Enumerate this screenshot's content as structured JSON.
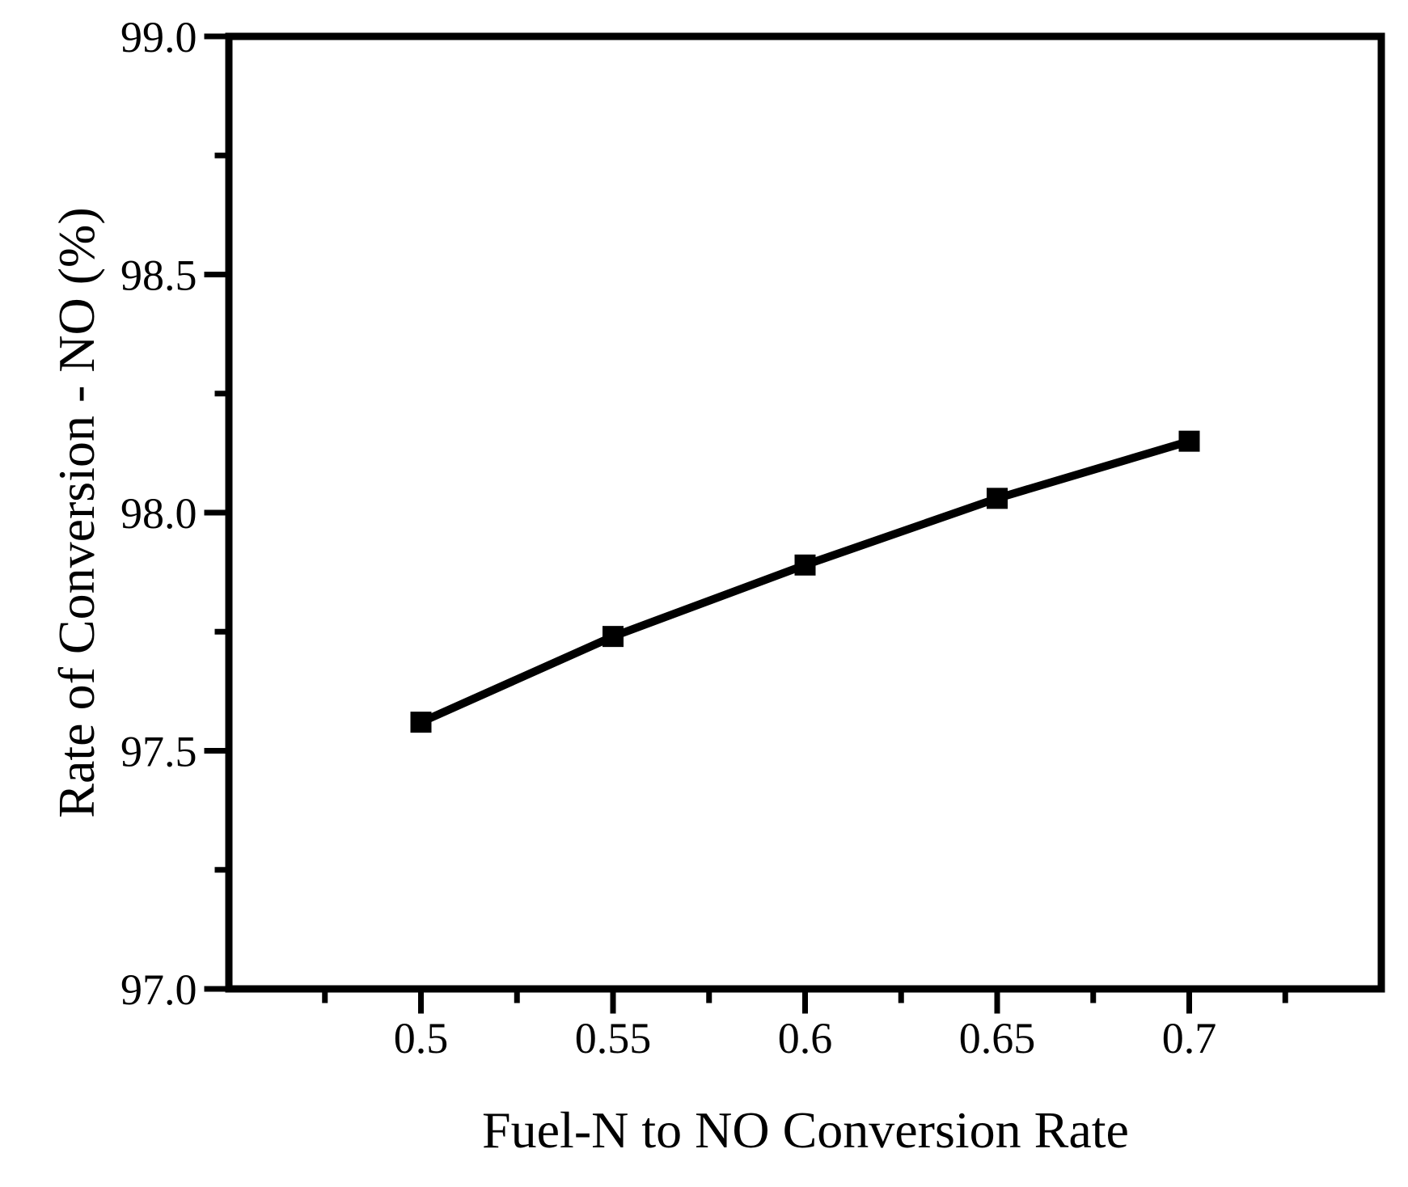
{
  "chart_data": {
    "type": "line",
    "xlabel": "Fuel-N to NO Conversion Rate",
    "ylabel": "Rate of Conversion - NO (%)",
    "series": [
      {
        "name": "Rate of Conversion - NO",
        "x": [
          0.5,
          0.55,
          0.6,
          0.65,
          0.7
        ],
        "y": [
          97.56,
          97.74,
          97.89,
          98.03,
          98.15
        ],
        "marker": "filled-square",
        "color": "#000000"
      }
    ],
    "xlim": [
      0.45,
      0.75
    ],
    "ylim": [
      97.0,
      99.0
    ],
    "x_major_ticks": [
      0.5,
      0.55,
      0.6,
      0.65,
      0.7
    ],
    "x_tick_labels": [
      "0.5",
      "0.55",
      "0.6",
      "0.65",
      "0.7"
    ],
    "x_minor_ticks": [
      0.475,
      0.525,
      0.575,
      0.625,
      0.675,
      0.725
    ],
    "y_major_ticks": [
      99.0,
      98.5,
      98.0,
      97.5,
      97.0
    ],
    "y_tick_labels": [
      "99.0",
      "98.5",
      "98.0",
      "97.5",
      "97.0"
    ],
    "y_minor_ticks": [
      98.75,
      98.25,
      97.75,
      97.25
    ],
    "grid": false,
    "legend": null,
    "axis_color": "#000000",
    "background_color": "#ffffff",
    "tick_direction": "out"
  }
}
